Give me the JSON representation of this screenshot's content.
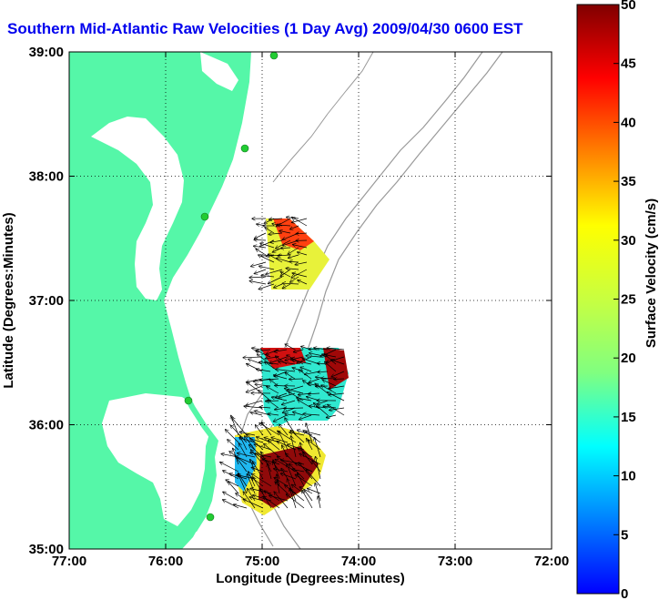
{
  "title": "Southern Mid-Atlantic Raw Velocities (1 Day Avg) 2009/04/30 0600 EST",
  "axes": {
    "xlabel": "Longitude (Degrees:Minutes)",
    "ylabel": "Latitude (Degrees:Minutes)",
    "xticks": [
      "77:00",
      "76:00",
      "75:00",
      "74:00",
      "73:00",
      "72:00"
    ],
    "yticks": [
      "39:00",
      "38:00",
      "37:00",
      "36:00",
      "35:00"
    ]
  },
  "colorbar": {
    "label": "Surface Velocity (cm/s)",
    "ticks": [
      "50",
      "45",
      "40",
      "35",
      "30",
      "25",
      "20",
      "15",
      "10",
      "5",
      "0"
    ],
    "min": 0,
    "max": 50
  },
  "colors": {
    "land": "#55f7a8",
    "title": "#0000ee",
    "bathymetry": "#999999",
    "station": "#22cc33"
  }
}
